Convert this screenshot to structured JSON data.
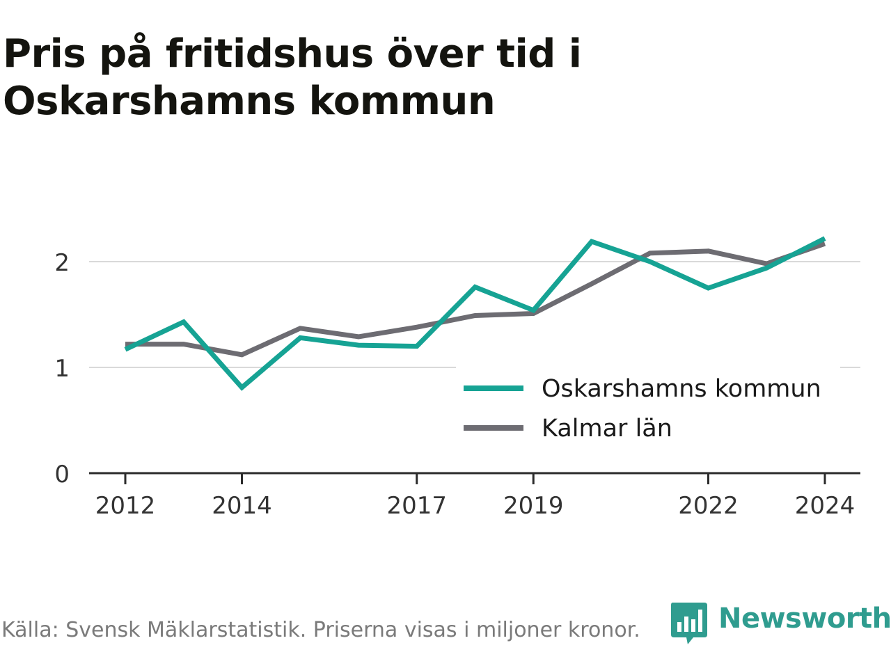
{
  "title": "Pris på fritidshus över tid i Oskarshamns kommun",
  "source": "Källa: Svensk Mäklarstatistik. Priserna visas i miljoner kronor.",
  "brand": {
    "name": "Newsworthy",
    "icon": "newsworthy-bar-chart-logo-icon",
    "color": "#2f9c8f"
  },
  "chart_data": {
    "type": "line",
    "x": [
      2012,
      2013,
      2014,
      2015,
      2016,
      2017,
      2018,
      2019,
      2020,
      2021,
      2022,
      2023,
      2024
    ],
    "series": [
      {
        "name": "Oskarshamns kommun",
        "color": "#16a394",
        "values": [
          1.17,
          1.43,
          0.81,
          1.28,
          1.21,
          1.2,
          1.76,
          1.54,
          2.19,
          2.0,
          1.75,
          1.94,
          2.22
        ]
      },
      {
        "name": "Kalmar län",
        "color": "#6d6c72",
        "values": [
          1.22,
          1.22,
          1.12,
          1.37,
          1.29,
          1.38,
          1.49,
          1.51,
          1.79,
          2.08,
          2.1,
          1.98,
          2.17
        ]
      }
    ],
    "xticks": [
      2012,
      2014,
      2017,
      2019,
      2022,
      2024
    ],
    "yticks": [
      0,
      1,
      2
    ],
    "ylim": [
      0,
      2.6
    ],
    "grid": true,
    "legend_position": "lower-right"
  }
}
